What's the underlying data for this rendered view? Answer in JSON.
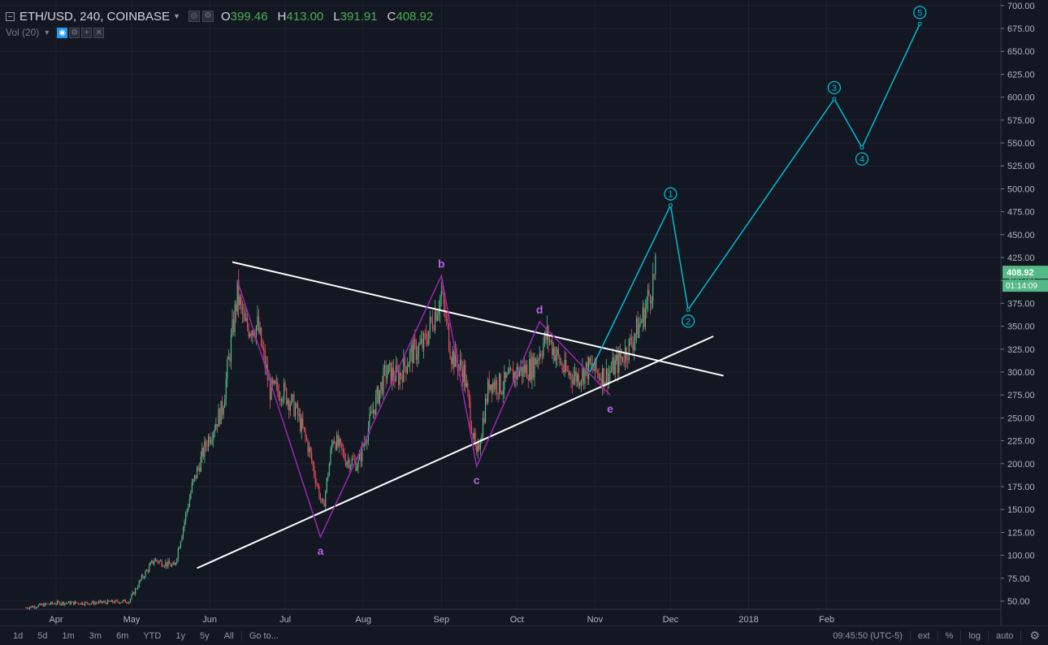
{
  "header": {
    "symbol": "ETH/USD, 240, COINBASE",
    "o_label": "O",
    "o_value": "399.46",
    "h_label": "H",
    "h_value": "413.00",
    "l_label": "L",
    "l_value": "391.91",
    "c_label": "C",
    "c_value": "408.92"
  },
  "volume_indicator": {
    "label": "Vol (20)"
  },
  "price_axis": {
    "last_price": "408.92",
    "countdown": "01:14:09"
  },
  "toolbar": {
    "ranges": [
      "1d",
      "5d",
      "1m",
      "3m",
      "6m",
      "YTD",
      "1y",
      "5y",
      "All"
    ],
    "goto_label": "Go to...",
    "time": "09:45:50 (UTC-5)",
    "ext": "ext",
    "pct": "%",
    "log": "log",
    "auto": "auto"
  },
  "colors": {
    "background": "#131722",
    "grid": "#1f2330",
    "candle_up": "#53b987",
    "candle_down": "#eb4d5c",
    "wave_abcde": "#9c27b0",
    "wave_label": "#b95ee8",
    "impulse": "#00bcd4",
    "trendline": "#ffffff",
    "price_tag": "#53b987"
  },
  "chart_data": {
    "type": "candlestick",
    "symbol": "ETH/USD",
    "interval": "240",
    "exchange": "COINBASE",
    "x_ticks": [
      "Apr",
      "May",
      "Jun",
      "Jul",
      "Aug",
      "Sep",
      "Oct",
      "Nov",
      "Dec",
      "2018",
      "Feb"
    ],
    "y_ticks": [
      50,
      75,
      100,
      125,
      150,
      175,
      200,
      225,
      250,
      275,
      300,
      325,
      350,
      375,
      400,
      425,
      450,
      475,
      500,
      525,
      550,
      575,
      600,
      625,
      650,
      675,
      700
    ],
    "ylim": [
      35,
      705
    ],
    "grid": true,
    "price_path": [
      [
        "2017-03-20",
        43
      ],
      [
        "2017-04-01",
        48
      ],
      [
        "2017-04-15",
        48
      ],
      [
        "2017-04-30",
        50
      ],
      [
        "2017-05-05",
        75
      ],
      [
        "2017-05-10",
        95
      ],
      [
        "2017-05-18",
        88
      ],
      [
        "2017-05-25",
        175
      ],
      [
        "2017-05-31",
        225
      ],
      [
        "2017-06-06",
        260
      ],
      [
        "2017-06-12",
        385
      ],
      [
        "2017-06-15",
        350
      ],
      [
        "2017-06-20",
        350
      ],
      [
        "2017-06-25",
        280
      ],
      [
        "2017-06-30",
        280
      ],
      [
        "2017-07-05",
        260
      ],
      [
        "2017-07-10",
        220
      ],
      [
        "2017-07-16",
        150
      ],
      [
        "2017-07-20",
        230
      ],
      [
        "2017-07-25",
        205
      ],
      [
        "2017-07-30",
        200
      ],
      [
        "2017-08-05",
        260
      ],
      [
        "2017-08-10",
        300
      ],
      [
        "2017-08-15",
        295
      ],
      [
        "2017-08-20",
        320
      ],
      [
        "2017-08-25",
        330
      ],
      [
        "2017-09-01",
        385
      ],
      [
        "2017-09-05",
        320
      ],
      [
        "2017-09-10",
        300
      ],
      [
        "2017-09-15",
        205
      ],
      [
        "2017-09-20",
        290
      ],
      [
        "2017-09-25",
        285
      ],
      [
        "2017-10-01",
        300
      ],
      [
        "2017-10-07",
        305
      ],
      [
        "2017-10-13",
        340
      ],
      [
        "2017-10-20",
        300
      ],
      [
        "2017-10-25",
        295
      ],
      [
        "2017-10-30",
        305
      ],
      [
        "2017-11-05",
        295
      ],
      [
        "2017-11-10",
        310
      ],
      [
        "2017-11-15",
        330
      ],
      [
        "2017-11-20",
        360
      ],
      [
        "2017-11-25",
        408.92
      ]
    ],
    "wave_abcde": [
      {
        "label": "",
        "date": "2017-06-12",
        "value": 400
      },
      {
        "label": "a",
        "date": "2017-07-15",
        "value": 120
      },
      {
        "label": "b",
        "date": "2017-09-01",
        "value": 405
      },
      {
        "label": "c",
        "date": "2017-09-15",
        "value": 197
      },
      {
        "label": "d",
        "date": "2017-10-10",
        "value": 355
      },
      {
        "label": "e",
        "date": "2017-11-07",
        "value": 275
      }
    ],
    "impulse_projection": [
      {
        "label": "",
        "date": "2017-10-30",
        "value": 300
      },
      {
        "label": "1",
        "date": "2017-12-01",
        "value": 482
      },
      {
        "label": "2",
        "date": "2017-12-08",
        "value": 368
      },
      {
        "label": "3",
        "date": "2018-02-04",
        "value": 598
      },
      {
        "label": "4",
        "date": "2018-02-15",
        "value": 545
      },
      {
        "label": "5",
        "date": "2018-03-10",
        "value": 680
      }
    ],
    "trendlines": [
      {
        "name": "upper",
        "from": [
          "2017-06-10",
          420
        ],
        "to": [
          "2017-12-22",
          296
        ]
      },
      {
        "name": "lower",
        "from": [
          "2017-05-27",
          86
        ],
        "to": [
          "2017-12-18",
          339
        ]
      }
    ]
  }
}
